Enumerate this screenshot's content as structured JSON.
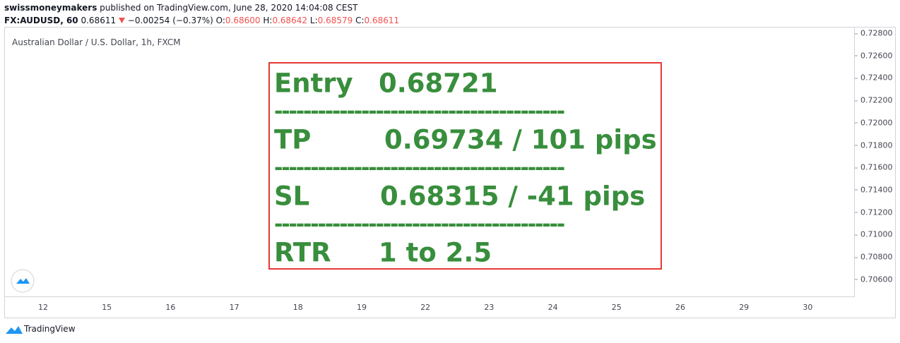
{
  "header": {
    "author": "swissmoneymakers",
    "published": "published on TradingView.com, June 28, 2020 14:04:08 CEST",
    "symbol": "FX:AUDUSD, 60",
    "last": "0.68611",
    "change": "−0.00254 (−0.37%)",
    "ohlc": [
      {
        "label": "O:",
        "value": "0.68600"
      },
      {
        "label": "H:",
        "value": "0.68642"
      },
      {
        "label": "L:",
        "value": "0.68579"
      },
      {
        "label": "C:",
        "value": "0.68611"
      }
    ]
  },
  "chart": {
    "description": "Australian Dollar / U.S. Dollar, 1h, FXCM",
    "price_ticks": [
      "0.72800",
      "0.72600",
      "0.72400",
      "0.72200",
      "0.72000",
      "0.71800",
      "0.71600",
      "0.71400",
      "0.71200",
      "0.71000",
      "0.70800",
      "0.70600"
    ],
    "time_ticks": [
      "12",
      "15",
      "16",
      "17",
      "18",
      "19",
      "22",
      "23",
      "24",
      "25",
      "26",
      "29",
      "30"
    ]
  },
  "trade_box": {
    "rows": [
      {
        "label": "Entry",
        "value": "0.68721"
      },
      {
        "divider": "----------------------------------------"
      },
      {
        "label": "TP",
        "value": "0.69734 / 101 pips"
      },
      {
        "divider": "----------------------------------------"
      },
      {
        "label": "SL",
        "value": "0.68315 / -41 pips"
      },
      {
        "divider": "----------------------------------------"
      },
      {
        "label": "RTR",
        "value": "1 to 2.5"
      }
    ]
  },
  "footer": {
    "brand": "TradingView"
  }
}
